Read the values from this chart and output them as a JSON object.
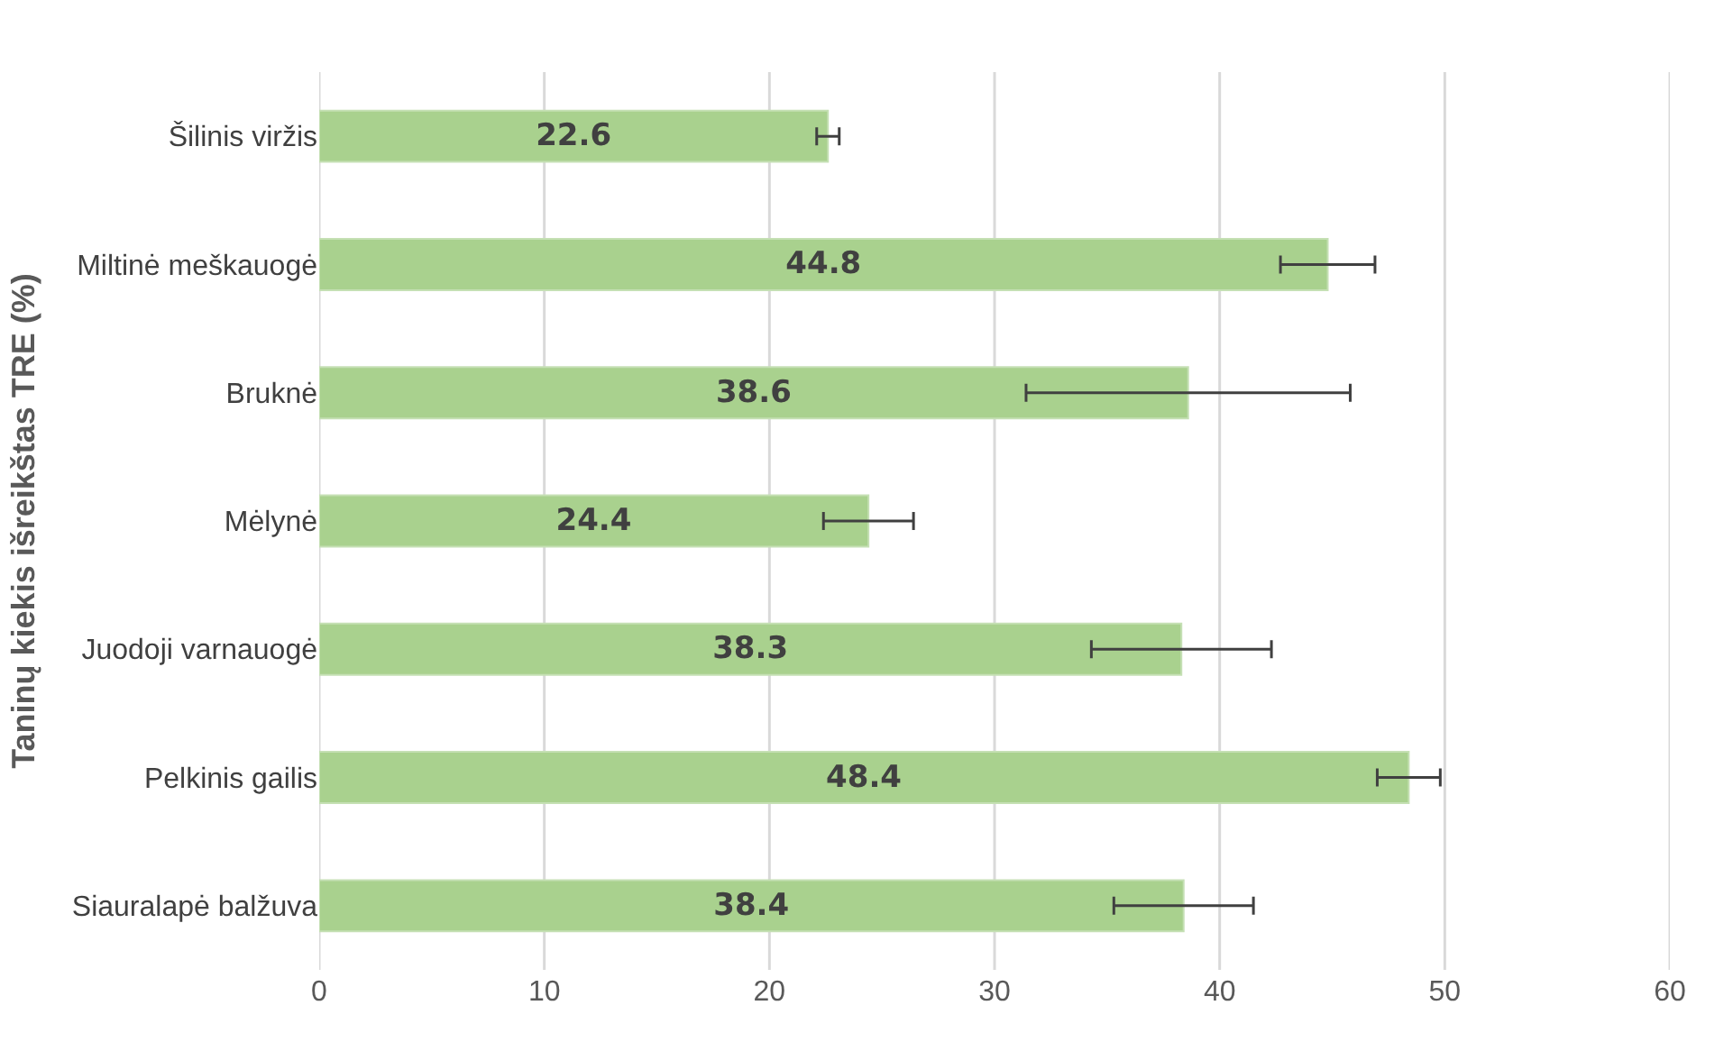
{
  "chart_data": {
    "type": "bar",
    "orientation": "horizontal",
    "ylabel": "Taninų kiekis išreikštas TRE (%)",
    "categories": [
      "Šilinis viržis",
      "Miltinė meškauogė",
      "Bruknė",
      "Mėlynė",
      "Juodoji varnauogė",
      "Pelkinis gailis",
      "Siauralapė balžuva"
    ],
    "values": [
      22.6,
      44.8,
      38.6,
      24.4,
      38.3,
      48.4,
      38.4
    ],
    "errors": [
      0.5,
      2.1,
      7.2,
      2,
      4,
      1.4,
      3.1
    ],
    "color": "#a9d18e",
    "data_labels": true,
    "xlim": [
      0,
      60
    ],
    "xticks": [
      0,
      10,
      20,
      30,
      40,
      50,
      60
    ],
    "grid": "x"
  }
}
